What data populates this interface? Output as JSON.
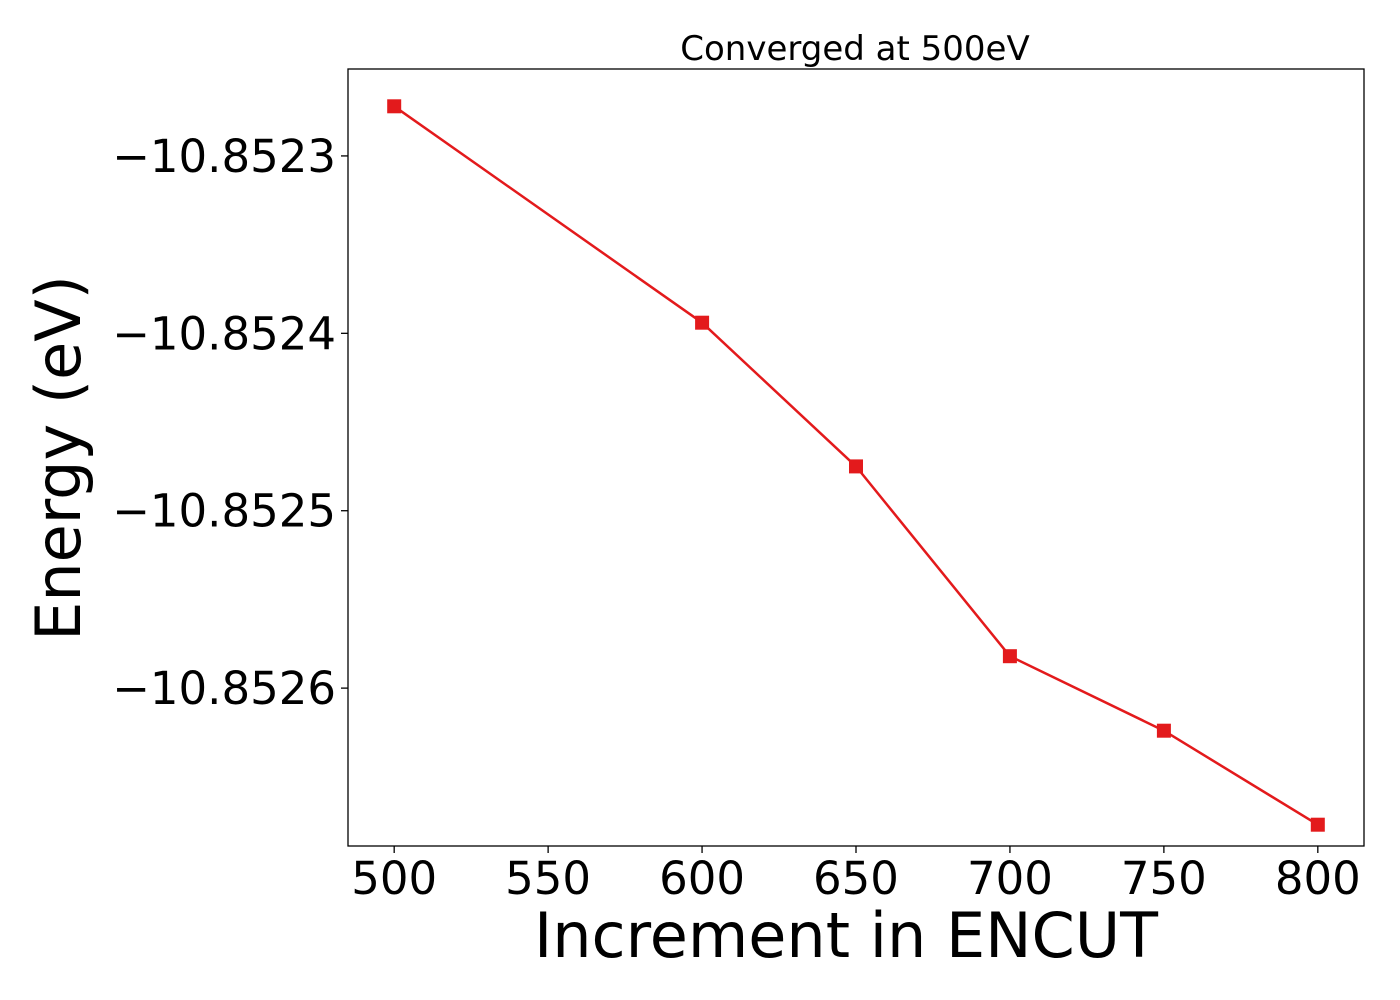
{
  "chart_data": {
    "type": "line",
    "title": "Converged at 500eV",
    "xlabel": "Increment in ENCUT",
    "ylabel": "Energy (eV)",
    "x": [
      500,
      600,
      650,
      700,
      750,
      800
    ],
    "series": [
      {
        "values": [
          -10.852272,
          -10.852394,
          -10.852475,
          -10.852582,
          -10.852624,
          -10.852677
        ],
        "color": "#e31a1c",
        "marker": "square"
      }
    ],
    "xlim": [
      485,
      815
    ],
    "ylim": [
      -10.852689,
      -10.852251
    ],
    "xticks": [
      500,
      550,
      600,
      650,
      700,
      750,
      800
    ],
    "xtick_labels": [
      "500",
      "550",
      "600",
      "650",
      "700",
      "750",
      "800"
    ],
    "yticks": [
      -10.8523,
      -10.8524,
      -10.8525,
      -10.8526
    ],
    "ytick_labels": [
      "−10.8523",
      "−10.8524",
      "−10.8525",
      "−10.8526"
    ],
    "grid": false,
    "legend": "none"
  }
}
